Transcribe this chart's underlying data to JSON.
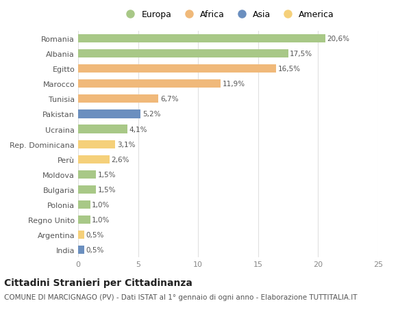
{
  "categories": [
    "Romania",
    "Albania",
    "Egitto",
    "Marocco",
    "Tunisia",
    "Pakistan",
    "Ucraina",
    "Rep. Dominicana",
    "Perù",
    "Moldova",
    "Bulgaria",
    "Polonia",
    "Regno Unito",
    "Argentina",
    "India"
  ],
  "values": [
    20.6,
    17.5,
    16.5,
    11.9,
    6.7,
    5.2,
    4.1,
    3.1,
    2.6,
    1.5,
    1.5,
    1.0,
    1.0,
    0.5,
    0.5
  ],
  "labels": [
    "20,6%",
    "17,5%",
    "16,5%",
    "11,9%",
    "6,7%",
    "5,2%",
    "4,1%",
    "3,1%",
    "2,6%",
    "1,5%",
    "1,5%",
    "1,0%",
    "1,0%",
    "0,5%",
    "0,5%"
  ],
  "colors": [
    "#a8c887",
    "#a8c887",
    "#f0b97a",
    "#f0b97a",
    "#f0b97a",
    "#6b8fbf",
    "#a8c887",
    "#f5d07a",
    "#f5d07a",
    "#a8c887",
    "#a8c887",
    "#a8c887",
    "#a8c887",
    "#f5d07a",
    "#6b8fbf"
  ],
  "legend_labels": [
    "Europa",
    "Africa",
    "Asia",
    "America"
  ],
  "legend_colors": [
    "#a8c887",
    "#f0b97a",
    "#6b8fbf",
    "#f5d07a"
  ],
  "title": "Cittadini Stranieri per Cittadinanza",
  "subtitle": "COMUNE DI MARCIGNAGO (PV) - Dati ISTAT al 1° gennaio di ogni anno - Elaborazione TUTTITALIA.IT",
  "xlim": [
    0,
    25
  ],
  "xticks": [
    0,
    5,
    10,
    15,
    20,
    25
  ],
  "background_color": "#ffffff",
  "grid_color": "#e0e0e0",
  "bar_height": 0.55,
  "title_fontsize": 10,
  "subtitle_fontsize": 7.5,
  "label_fontsize": 7.5,
  "tick_fontsize": 8,
  "legend_fontsize": 9
}
